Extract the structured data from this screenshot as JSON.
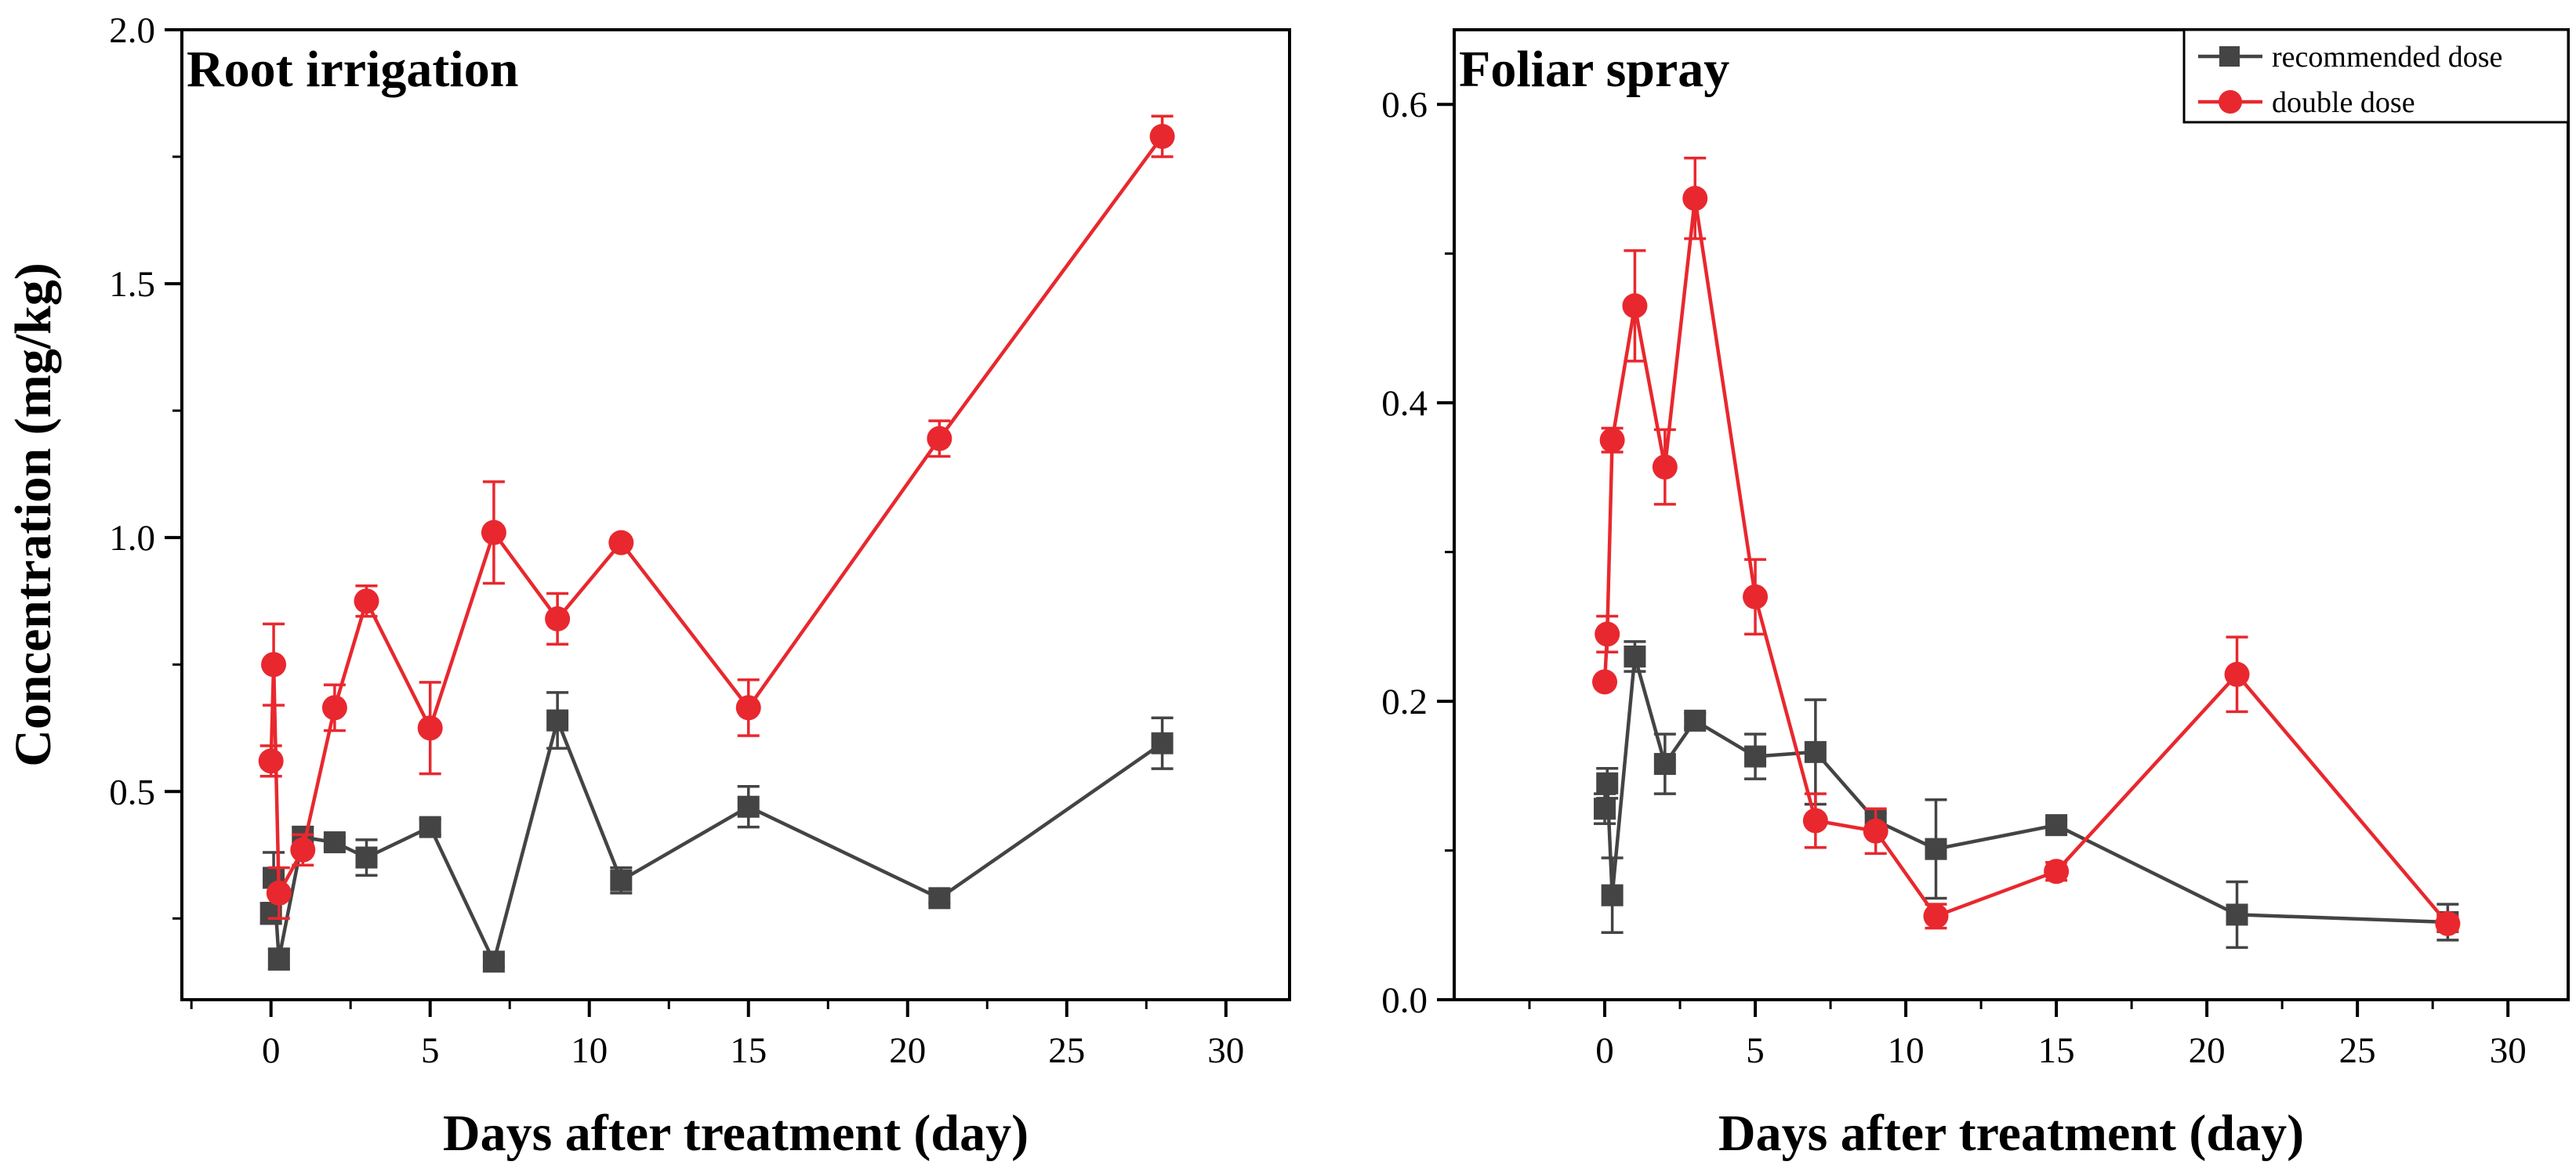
{
  "chart_data": [
    {
      "type": "line",
      "title": "Root irrigation",
      "xlabel": "Days after treatment (day)",
      "ylabel": "Concentration (mg/kg)",
      "xlim": [
        -2.8,
        32
      ],
      "ylim": [
        0.09,
        2.0
      ],
      "xticks": [
        0,
        5,
        10,
        15,
        20,
        25,
        30
      ],
      "xtick_labels": [
        "0",
        "5",
        "10",
        "15",
        "20",
        "25",
        "30"
      ],
      "yticks": [
        0.5,
        1.0,
        1.5,
        2.0
      ],
      "ytick_labels": [
        "0.5",
        "1.0",
        "1.5",
        "2.0"
      ],
      "series": [
        {
          "name": "recommended dose",
          "color": "#444444",
          "marker": "square",
          "x": [
            0,
            0.083,
            0.25,
            1,
            2,
            3,
            5,
            7,
            9,
            11,
            15,
            21,
            28
          ],
          "y": [
            0.26,
            0.33,
            0.17,
            0.41,
            0.4,
            0.37,
            0.43,
            0.165,
            0.64,
            0.325,
            0.47,
            0.29,
            0.595
          ],
          "err": [
            0.02,
            0.05,
            0.02,
            0.02,
            0.01,
            0.035,
            0.015,
            0.01,
            0.055,
            0.025,
            0.04,
            0.01,
            0.05
          ]
        },
        {
          "name": "double dose",
          "color": "#e8282e",
          "marker": "circle",
          "x": [
            0,
            0.083,
            0.25,
            1,
            2,
            3,
            5,
            7,
            9,
            11,
            15,
            21,
            28
          ],
          "y": [
            0.56,
            0.75,
            0.3,
            0.385,
            0.665,
            0.875,
            0.625,
            1.01,
            0.84,
            0.99,
            0.665,
            1.195,
            1.79
          ],
          "err": [
            0.03,
            0.08,
            0.05,
            0.03,
            0.045,
            0.03,
            0.09,
            0.1,
            0.05,
            0.01,
            0.055,
            0.035,
            0.04
          ]
        }
      ]
    },
    {
      "type": "line",
      "title": "Foliar spray",
      "xlabel": "Days after treatment (day)",
      "ylabel": "",
      "xlim": [
        -5,
        32
      ],
      "ylim": [
        0.0,
        0.65
      ],
      "xticks": [
        0,
        5,
        10,
        15,
        20,
        25,
        30
      ],
      "xtick_labels": [
        "0",
        "5",
        "10",
        "15",
        "20",
        "25",
        "30"
      ],
      "yticks": [
        0.0,
        0.2,
        0.4,
        0.6
      ],
      "ytick_labels": [
        "0.0",
        "0.2",
        "0.4",
        "0.6"
      ],
      "legend": {
        "position": "top-right",
        "entries": [
          "recommended dose",
          "double dose"
        ]
      },
      "series": [
        {
          "name": "recommended dose",
          "color": "#444444",
          "marker": "square",
          "x": [
            0,
            0.083,
            0.25,
            1,
            2,
            3,
            5,
            7,
            9,
            11,
            15,
            21,
            28
          ],
          "y": [
            0.128,
            0.145,
            0.07,
            0.23,
            0.158,
            0.187,
            0.163,
            0.166,
            0.12,
            0.101,
            0.117,
            0.057,
            0.052
          ],
          "err": [
            0.01,
            0.01,
            0.025,
            0.01,
            0.02,
            0.005,
            0.015,
            0.035,
            0.005,
            0.033,
            0.003,
            0.022,
            0.012
          ]
        },
        {
          "name": "double dose",
          "color": "#e8282e",
          "marker": "circle",
          "x": [
            0,
            0.083,
            0.25,
            1,
            2,
            3,
            5,
            7,
            9,
            11,
            15,
            21,
            28
          ],
          "y": [
            0.213,
            0.245,
            0.375,
            0.465,
            0.357,
            0.537,
            0.27,
            0.12,
            0.113,
            0.056,
            0.086,
            0.218,
            0.051
          ],
          "err": [
            0.003,
            0.012,
            0.008,
            0.037,
            0.025,
            0.027,
            0.025,
            0.018,
            0.015,
            0.008,
            0.006,
            0.025,
            0.005
          ]
        }
      ]
    }
  ]
}
